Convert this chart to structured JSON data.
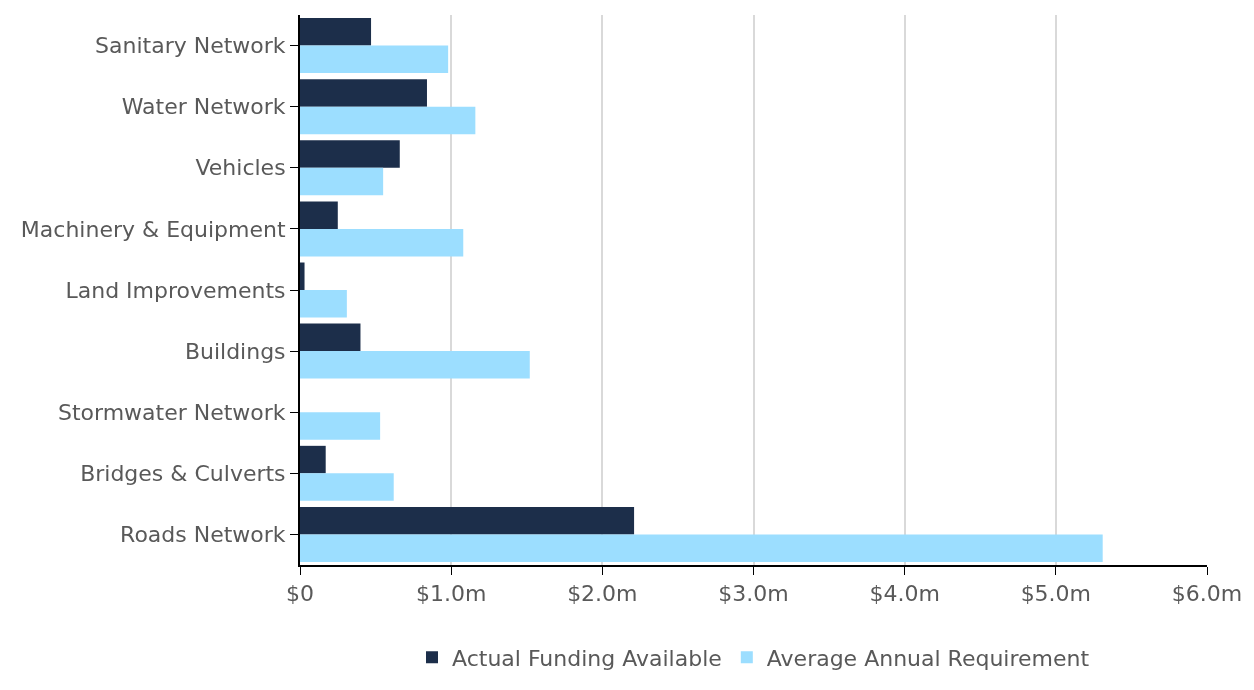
{
  "chart_data": {
    "type": "bar",
    "orientation": "horizontal",
    "categories": [
      "Sanitary Network",
      "Water Network",
      "Vehicles",
      "Machinery & Equipment",
      "Land Improvements",
      "Buildings",
      "Stormwater Network",
      "Bridges & Culverts",
      "Roads Network"
    ],
    "series": [
      {
        "name": "Actual Funding Available",
        "color": "#1c2e4a",
        "values": [
          0.47,
          0.84,
          0.66,
          0.25,
          0.03,
          0.4,
          0,
          0.17,
          2.21
        ]
      },
      {
        "name": "Average Annual Requirement",
        "color": "#9cdeff",
        "values": [
          0.98,
          1.16,
          0.55,
          1.08,
          0.31,
          1.52,
          0.53,
          0.62,
          5.31
        ]
      }
    ],
    "xlim": [
      0,
      6
    ],
    "xticks": [
      {
        "value": 0,
        "label": "$0"
      },
      {
        "value": 1,
        "label": "$1.0m"
      },
      {
        "value": 2,
        "label": "$2.0m"
      },
      {
        "value": 3,
        "label": "$3.0m"
      },
      {
        "value": 4,
        "label": "$4.0m"
      },
      {
        "value": 5,
        "label": "$5.0m"
      },
      {
        "value": 6,
        "label": "$6.0m"
      }
    ],
    "grid": "x",
    "legend": "bottom"
  }
}
